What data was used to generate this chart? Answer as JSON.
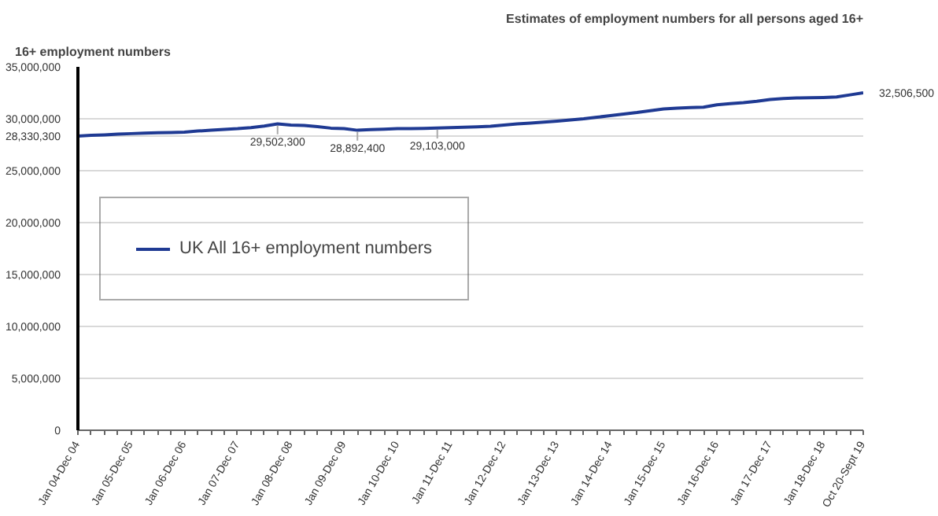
{
  "chart_data": {
    "type": "line",
    "title": "Estimates of employment numbers for all persons aged 16+",
    "subtitle": "16+ employment numbers",
    "categories": [
      "Jan 04-Dec 04",
      null,
      null,
      null,
      "Jan 05-Dec 05",
      null,
      null,
      null,
      "Jan 06-Dec 06",
      null,
      null,
      null,
      "Jan 07-Dec 07",
      null,
      null,
      null,
      "Jan 08-Dec 08",
      null,
      null,
      null,
      "Jan 09-Dec 09",
      null,
      null,
      null,
      "Jan 10-Dec 10",
      null,
      null,
      null,
      "Jan 11-Dec 11",
      null,
      null,
      null,
      "Jan 12-Dec 12",
      null,
      null,
      null,
      "Jan 13-Dec 13",
      null,
      null,
      null,
      "Jan 14-Dec 14",
      null,
      null,
      null,
      "Jan 15-Dec 15",
      null,
      null,
      null,
      "Jan 16-Dec 16",
      null,
      null,
      null,
      "Jan 17-Dec 17",
      null,
      null,
      null,
      "Jan 18-Dec 18",
      null,
      null,
      "Oct 20-Sept 19"
    ],
    "series": [
      {
        "name": "UK All 16+ employment numbers",
        "color": "#1f3a93",
        "values": [
          28330300,
          28400000,
          28450000,
          28520000,
          28570000,
          28620000,
          28650000,
          28680000,
          28720000,
          28820000,
          28900000,
          28980000,
          29050000,
          29150000,
          29300000,
          29502300,
          29400000,
          29350000,
          29250000,
          29100000,
          29050000,
          28892400,
          28950000,
          29000000,
          29050000,
          29050000,
          29080000,
          29103000,
          29150000,
          29180000,
          29220000,
          29280000,
          29400000,
          29500000,
          29580000,
          29680000,
          29780000,
          29880000,
          30000000,
          30150000,
          30300000,
          30450000,
          30600000,
          30780000,
          30950000,
          31020000,
          31080000,
          31120000,
          31350000,
          31450000,
          31550000,
          31680000,
          31850000,
          31950000,
          32000000,
          32020000,
          32050000,
          32100000,
          32300000,
          32506500
        ],
        "value_labels": [
          "28,330,300",
          null,
          null,
          null,
          null,
          null,
          null,
          null,
          null,
          null,
          null,
          null,
          null,
          null,
          null,
          "29,502,300",
          null,
          null,
          null,
          null,
          null,
          "28,892,400",
          null,
          null,
          null,
          null,
          null,
          "29,103,000",
          null,
          null,
          null,
          null,
          null,
          null,
          null,
          null,
          null,
          null,
          null,
          null,
          null,
          null,
          null,
          null,
          null,
          null,
          null,
          null,
          null,
          null,
          null,
          null,
          null,
          null,
          null,
          null,
          null,
          null,
          null,
          "32,506,500"
        ]
      }
    ],
    "ylim": [
      0,
      35000000
    ],
    "yticks": [
      {
        "value": 0,
        "label": "0"
      },
      {
        "value": 5000000,
        "label": "5,000,000"
      },
      {
        "value": 10000000,
        "label": "10,000,000"
      },
      {
        "value": 15000000,
        "label": "15,000,000"
      },
      {
        "value": 20000000,
        "label": "20,000,000"
      },
      {
        "value": 25000000,
        "label": "25,000,000"
      },
      {
        "value": 30000000,
        "label": "30,000,000"
      },
      {
        "value": 35000000,
        "label": "35,000,000"
      }
    ],
    "grid": "y",
    "legend": "left",
    "marker": "none",
    "line_style": "solid"
  }
}
